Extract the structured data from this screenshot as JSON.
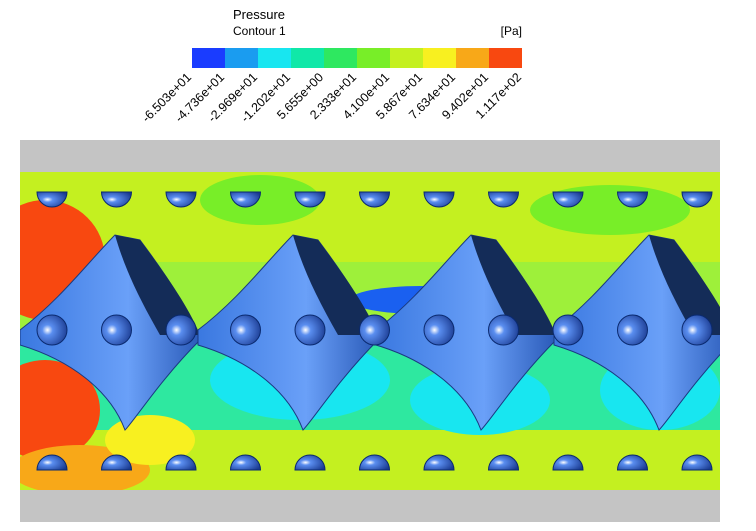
{
  "legend": {
    "title": "Pressure",
    "subtitle": "Contour 1",
    "unit": "[Pa]",
    "colors": [
      "#1a3cff",
      "#1a9cf0",
      "#18e6f0",
      "#10e8a8",
      "#2ee860",
      "#78ee28",
      "#c4f020",
      "#f8f020",
      "#f8a818",
      "#f84810"
    ],
    "tick_labels": [
      "-6.503e+01",
      "-4.736e+01",
      "-2.969e+01",
      "-1.202e+01",
      "5.655e+00",
      "2.333e+01",
      "4.100e+01",
      "5.867e+01",
      "7.634e+01",
      "9.402e+01",
      "1.117e+02"
    ]
  }
}
